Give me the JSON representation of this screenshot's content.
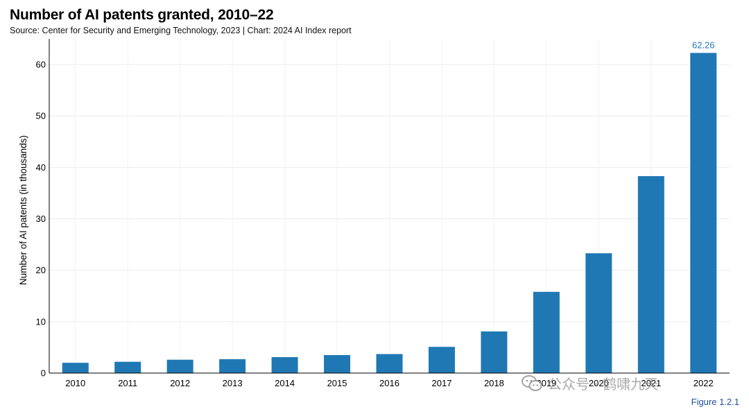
{
  "header": {
    "title": "Number of AI patents granted, 2010–22",
    "subtitle": "Source: Center for Security and Emerging Technology, 2023 | Chart: 2024 AI Index report"
  },
  "footer": {
    "figure_label": "Figure 1.2.1",
    "watermark_text": "公众号 · 鹤啸九天"
  },
  "chart_data": {
    "type": "bar",
    "title": "Number of AI patents granted, 2010–22",
    "xlabel": "",
    "ylabel": "Number of AI patents (in thousands)",
    "categories": [
      "2010",
      "2011",
      "2012",
      "2013",
      "2014",
      "2015",
      "2016",
      "2017",
      "2018",
      "2019",
      "2020",
      "2021",
      "2022"
    ],
    "values": [
      2.0,
      2.2,
      2.6,
      2.7,
      3.1,
      3.5,
      3.7,
      5.1,
      8.1,
      15.8,
      23.3,
      38.3,
      62.26
    ],
    "data_labels": [
      null,
      null,
      null,
      null,
      null,
      null,
      null,
      null,
      null,
      null,
      null,
      null,
      "62.26"
    ],
    "ylim": [
      0,
      65
    ],
    "yticks": [
      0,
      10,
      20,
      30,
      40,
      50,
      60
    ],
    "grid": true,
    "legend": "none",
    "bar_color": "#1f78b4"
  }
}
